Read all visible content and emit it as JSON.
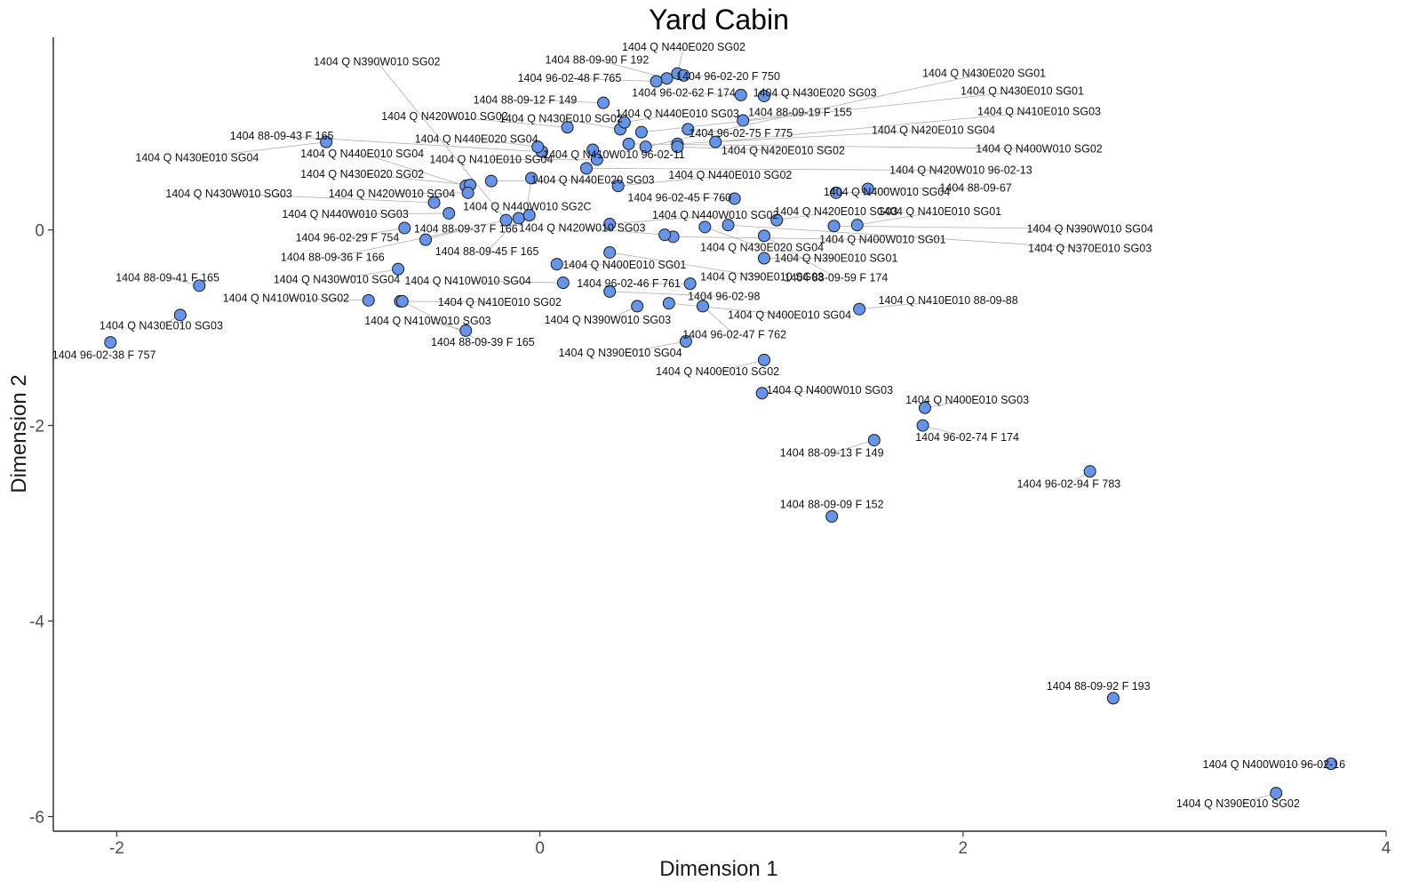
{
  "chart_data": {
    "type": "scatter",
    "title": "Yard Cabin",
    "xlabel": "Dimension 1",
    "ylabel": "Dimension 2",
    "xlim": [
      -2.3,
      4.0
    ],
    "ylim": [
      -6.15,
      1.97
    ],
    "xticks": [
      -2,
      0,
      2,
      4
    ],
    "yticks": [
      -6,
      -4,
      -2,
      0
    ],
    "grid": false,
    "point_color": "#6495ED",
    "points": [
      {
        "x": 0.65,
        "y": 1.6,
        "label": "1404 Q N440E020 SG02",
        "lx": 0.68,
        "ly": 1.87
      },
      {
        "x": 0.6,
        "y": 1.55,
        "label": "1404 88-09-90 F 192",
        "lx": 0.27,
        "ly": 1.74
      },
      {
        "x": 0.55,
        "y": 1.52,
        "label": "1404 96-02-48 F 765",
        "lx": 0.14,
        "ly": 1.55
      },
      {
        "x": 0.68,
        "y": 1.58,
        "label": "1404 96-02-20 F 750",
        "lx": 0.89,
        "ly": 1.57
      },
      {
        "x": 1.06,
        "y": 1.37,
        "label": "1404 Q N430E020 SG03",
        "lx": 1.3,
        "ly": 1.4
      },
      {
        "x": 0.95,
        "y": 1.38,
        "label": "1404 96-02-62 F 174",
        "lx": 0.68,
        "ly": 1.4
      },
      {
        "x": 0.3,
        "y": 1.3,
        "label": "1404 88-09-12 F 149",
        "lx": -0.07,
        "ly": 1.33
      },
      {
        "x": 0.38,
        "y": 1.03,
        "label": "1404 Q N430E010 SG02",
        "lx": 0.1,
        "ly": 1.14
      },
      {
        "x": 0.13,
        "y": 1.05,
        "label": "1404 Q N420W010 SG02",
        "lx": -0.45,
        "ly": 1.16
      },
      {
        "x": 0.4,
        "y": 1.1,
        "label": "1404 Q N440E010 SG03",
        "lx": 0.65,
        "ly": 1.19
      },
      {
        "x": 0.96,
        "y": 1.12,
        "label": "1404 88-09-19 F 155",
        "lx": 1.23,
        "ly": 1.2
      },
      {
        "x": 0.7,
        "y": 1.03,
        "label": "1404 96-02-75 F 775",
        "lx": 0.95,
        "ly": 0.99
      },
      {
        "x": 0.48,
        "y": 1.0,
        "label": "1404 Q N430E010 SG01",
        "lx": 2.28,
        "ly": 1.42
      },
      {
        "x": 0.83,
        "y": 0.9,
        "label": "1404 Q N410E010 SG03",
        "lx": 2.36,
        "ly": 1.21
      },
      {
        "x": 0.65,
        "y": 0.88,
        "label": "1404 Q N420E010 SG04",
        "lx": 1.86,
        "ly": 1.02
      },
      {
        "x": 0.5,
        "y": 0.85,
        "label": "1404 Q N430E020 SG01",
        "lx": 2.1,
        "ly": 1.6
      },
      {
        "x": 0.42,
        "y": 0.88,
        "label": "1404 Q N400W010 SG02",
        "lx": 2.36,
        "ly": 0.83
      },
      {
        "x": 0.01,
        "y": 0.8,
        "label": "1404 88-09-43 F 165",
        "lx": -1.22,
        "ly": 0.96
      },
      {
        "x": -0.01,
        "y": 0.85,
        "label": "1404 Q N440E020 SG04",
        "lx": -0.3,
        "ly": 0.93
      },
      {
        "x": 0.25,
        "y": 0.82,
        "label": "1404 Q N410W010 96-02-11",
        "lx": 0.35,
        "ly": 0.77
      },
      {
        "x": 0.65,
        "y": 0.85,
        "label": "1404 Q N420E010 SG02",
        "lx": 1.15,
        "ly": 0.81
      },
      {
        "x": -1.01,
        "y": 0.9,
        "label": "1404 Q N430E010 SG04",
        "lx": -1.62,
        "ly": 0.74
      },
      {
        "x": -0.35,
        "y": 0.45,
        "label": "1404 Q N440E010 SG04",
        "lx": -0.84,
        "ly": 0.78
      },
      {
        "x": 0.27,
        "y": 0.72,
        "label": "1404 Q N410E010 SG04",
        "lx": -0.23,
        "ly": 0.72
      },
      {
        "x": 0.22,
        "y": 0.63,
        "label": "1404 Q N420W010 96-02-13",
        "lx": 1.99,
        "ly": 0.61
      },
      {
        "x": -0.33,
        "y": 0.46,
        "label": "1404 Q N430E020 SG02",
        "lx": -0.84,
        "ly": 0.57
      },
      {
        "x": -0.23,
        "y": 0.5,
        "label": "1404 Q N440E020 SG03",
        "lx": 0.25,
        "ly": 0.51
      },
      {
        "x": 0.37,
        "y": 0.45,
        "label": "1404 Q N440E010 SG02",
        "lx": 0.9,
        "ly": 0.56
      },
      {
        "x": -0.04,
        "y": 0.53,
        "label": "1404 Q N440W010 SG2C",
        "lx": -0.06,
        "ly": 0.24
      },
      {
        "x": 0.92,
        "y": 0.32,
        "label": "1404 96-02-45 F 760",
        "lx": 0.66,
        "ly": 0.33
      },
      {
        "x": 1.4,
        "y": 0.38,
        "label": "1404 Q N400W010 SG04",
        "lx": 1.64,
        "ly": 0.39
      },
      {
        "x": 1.55,
        "y": 0.42,
        "label": "1404 88-09-67",
        "lx": 2.06,
        "ly": 0.43
      },
      {
        "x": -0.34,
        "y": 0.38,
        "label": "1404 Q N420W010 SG04",
        "lx": -0.7,
        "ly": 0.37
      },
      {
        "x": -0.5,
        "y": 0.28,
        "label": "1404 Q N430W010 SG03",
        "lx": -1.47,
        "ly": 0.37
      },
      {
        "x": -0.43,
        "y": 0.17,
        "label": "1404 Q N440W010 SG03",
        "lx": -0.92,
        "ly": 0.16
      },
      {
        "x": 0.33,
        "y": 0.06,
        "label": "1404 Q N440W010 SG02",
        "lx": 0.83,
        "ly": 0.15
      },
      {
        "x": 1.12,
        "y": 0.1,
        "label": "1404 Q N420E010 SG03",
        "lx": 1.4,
        "ly": 0.19
      },
      {
        "x": 1.5,
        "y": 0.05,
        "label": "1404 Q N410E010 SG01",
        "lx": 1.89,
        "ly": 0.19
      },
      {
        "x": 1.39,
        "y": 0.04,
        "label": "1404 Q N390W010 SG04",
        "lx": 2.6,
        "ly": 0.01
      },
      {
        "x": -0.64,
        "y": 0.02,
        "label": "1404 96-02-29 F 754",
        "lx": -0.91,
        "ly": -0.08
      },
      {
        "x": -0.54,
        "y": -0.1,
        "label": "1404 88-09-37 F 166",
        "lx": -0.35,
        "ly": 0.01
      },
      {
        "x": 0.63,
        "y": -0.07,
        "label": "1404 Q N400W010 SG01",
        "lx": 1.62,
        "ly": -0.1
      },
      {
        "x": 0.89,
        "y": 0.05,
        "label": "1404 Q N370E010 SG03",
        "lx": 2.6,
        "ly": -0.19
      },
      {
        "x": 0.59,
        "y": -0.05,
        "label": "1404 Q N420W010 SG03",
        "lx": 0.2,
        "ly": 0.02
      },
      {
        "x": 0.78,
        "y": 0.03,
        "label": "1404 Q N430E020 SG04",
        "lx": 1.05,
        "ly": -0.18
      },
      {
        "x": -0.1,
        "y": 0.12,
        "label": "1404 88-09-45 F 165",
        "lx": -0.25,
        "ly": -0.22
      },
      {
        "x": -0.05,
        "y": 0.15,
        "label": "1404 88-09-36 F 166",
        "lx": -0.98,
        "ly": -0.28
      },
      {
        "x": 1.06,
        "y": -0.29,
        "label": "1404 Q N390E010 SG01",
        "lx": 1.4,
        "ly": -0.29
      },
      {
        "x": 1.06,
        "y": -0.06,
        "label": "1404 88-09-59 F 174",
        "lx": 1.4,
        "ly": -0.49
      },
      {
        "x": 0.08,
        "y": -0.35,
        "label": "1404 Q N400E010 SG01",
        "lx": 0.4,
        "ly": -0.36
      },
      {
        "x": 0.33,
        "y": -0.23,
        "label": "1404 Q N390E010 SG03",
        "lx": 1.05,
        "ly": -0.48
      },
      {
        "x": -1.61,
        "y": -0.57,
        "label": "1404 88-09-41 F 165",
        "lx": -1.76,
        "ly": -0.49
      },
      {
        "x": -0.67,
        "y": -0.4,
        "label": "1404 Q N430W010 SG04",
        "lx": -0.96,
        "ly": -0.51
      },
      {
        "x": 0.11,
        "y": -0.54,
        "label": "1404 Q N410W010 SG04",
        "lx": -0.34,
        "ly": -0.52
      },
      {
        "x": 0.71,
        "y": -0.55,
        "label": "1404 96-02-46 F 761",
        "lx": 0.42,
        "ly": -0.55
      },
      {
        "x": 0.33,
        "y": -0.63,
        "label": "1404 96-02-98",
        "lx": 0.87,
        "ly": -0.68
      },
      {
        "x": -0.81,
        "y": -0.72,
        "label": "1404 Q N410W010 SG02",
        "lx": -1.2,
        "ly": -0.7
      },
      {
        "x": -0.66,
        "y": -0.73,
        "label": "1404 Q N410E010 SG02",
        "lx": -0.19,
        "ly": -0.74
      },
      {
        "x": 0.61,
        "y": -0.75,
        "label": "1404 Q N400E010 SG04",
        "lx": 1.18,
        "ly": -0.87
      },
      {
        "x": 0.77,
        "y": -0.78,
        "label": "1404 96-02-47 F 762",
        "lx": 0.92,
        "ly": -1.07
      },
      {
        "x": 1.51,
        "y": -0.81,
        "label": "1404 Q N410E010 88-09-88",
        "lx": 1.93,
        "ly": -0.72
      },
      {
        "x": -1.7,
        "y": -0.87,
        "label": "1404 Q N430E010 SG03",
        "lx": -1.79,
        "ly": -0.98
      },
      {
        "x": 0.46,
        "y": -0.78,
        "label": "1404 Q N390W010 SG03",
        "lx": 0.32,
        "ly": -0.92
      },
      {
        "x": -0.35,
        "y": -1.03,
        "label": "1404 Q N410W010 SG03",
        "lx": -0.53,
        "ly": -0.93
      },
      {
        "x": -2.03,
        "y": -1.15,
        "label": "1404 96-02-38 F 757",
        "lx": -2.06,
        "ly": -1.28
      },
      {
        "x": -0.65,
        "y": -0.73,
        "label": "1404 88-09-39 F 165",
        "lx": -0.27,
        "ly": -1.15
      },
      {
        "x": 0.69,
        "y": -1.14,
        "label": "1404 Q N390E010 SG04",
        "lx": 0.38,
        "ly": -1.26
      },
      {
        "x": 1.06,
        "y": -1.33,
        "label": "1404 Q N400E010 SG02",
        "lx": 0.84,
        "ly": -1.45
      },
      {
        "x": 1.05,
        "y": -1.67,
        "label": "1404 Q N400W010 SG03",
        "lx": 1.37,
        "ly": -1.64
      },
      {
        "x": 1.82,
        "y": -1.82,
        "label": "1404 Q N400E010 SG03",
        "lx": 2.02,
        "ly": -1.74
      },
      {
        "x": 1.81,
        "y": -2.0,
        "label": "1404 96-02-74 F 174",
        "lx": 2.02,
        "ly": -2.12
      },
      {
        "x": 1.58,
        "y": -2.15,
        "label": "1404 88-09-13 F 149",
        "lx": 1.38,
        "ly": -2.28
      },
      {
        "x": 2.6,
        "y": -2.47,
        "label": "1404 96-02-94 F 783",
        "lx": 2.5,
        "ly": -2.6
      },
      {
        "x": 1.38,
        "y": -2.93,
        "label": "1404 88-09-09 F 152",
        "lx": 1.38,
        "ly": -2.81
      },
      {
        "x": 2.71,
        "y": -4.79,
        "label": "1404 88-09-92 F 193",
        "lx": 2.64,
        "ly": -4.67
      },
      {
        "x": 3.74,
        "y": -5.46,
        "label": "1404 Q N400W010 96-02-16",
        "lx": 3.47,
        "ly": -5.47
      },
      {
        "x": 3.48,
        "y": -5.76,
        "label": "1404 Q N390E010 SG02",
        "lx": 3.3,
        "ly": -5.87
      },
      {
        "x": -0.16,
        "y": 0.1,
        "label": "1404 Q N390W010 SG02",
        "lx": -0.77,
        "ly": 1.72
      }
    ]
  }
}
